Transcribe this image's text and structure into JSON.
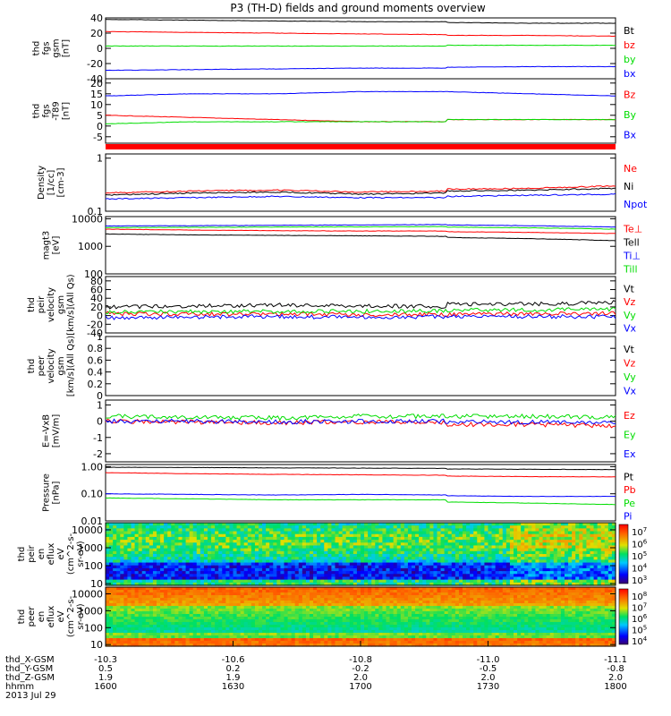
{
  "title": "P3 (TH-D) fields and ground moments overview",
  "colors": {
    "black": "#000000",
    "red": "#ff0000",
    "green": "#00dd00",
    "blue": "#0000ff"
  },
  "chart_data": [
    {
      "type": "line",
      "panel": "fgs_gsm",
      "ylabel": [
        "thd",
        "fgs",
        "gsm",
        "[nT]"
      ],
      "ylim": [
        -40,
        40
      ],
      "yticks": [
        40,
        20,
        0,
        -20,
        -40
      ],
      "series": [
        {
          "name": "Bt",
          "color": "black",
          "x": [
            1600,
            1620,
            1640,
            1660,
            1680,
            1700,
            1720,
            1740,
            1760,
            1780,
            1800
          ],
          "values": [
            38,
            37,
            36,
            35,
            35,
            34,
            34,
            33,
            33,
            32,
            33
          ]
        },
        {
          "name": "bz",
          "color": "red",
          "x": [
            1600,
            1620,
            1640,
            1660,
            1680,
            1700,
            1720,
            1740,
            1760,
            1780,
            1800
          ],
          "values": [
            22,
            21,
            20,
            19,
            18,
            18,
            17,
            17,
            16,
            15,
            16
          ]
        },
        {
          "name": "by",
          "color": "green",
          "x": [
            1600,
            1620,
            1640,
            1660,
            1680,
            1700,
            1720,
            1740,
            1760,
            1780,
            1800
          ],
          "values": [
            3,
            3,
            3,
            3,
            3,
            4,
            4,
            4,
            4,
            4,
            4
          ]
        },
        {
          "name": "bx",
          "color": "blue",
          "x": [
            1600,
            1620,
            1640,
            1660,
            1680,
            1700,
            1720,
            1740,
            1760,
            1780,
            1800
          ],
          "values": [
            -29,
            -28,
            -27,
            -26,
            -26,
            -25,
            -25,
            -24,
            -24,
            -23,
            -24
          ]
        }
      ]
    },
    {
      "type": "line",
      "panel": "fgs_t89",
      "ylabel": [
        "thd",
        "fgs",
        "-T89",
        "[nT]"
      ],
      "ylim": [
        -8,
        22
      ],
      "yticks": [
        20,
        15,
        10,
        5,
        0,
        -5
      ],
      "series": [
        {
          "name": "Bz",
          "color": "red",
          "x": [
            1600,
            1620,
            1640,
            1660,
            1680,
            1700,
            1720,
            1740,
            1760,
            1780,
            1800
          ],
          "values": [
            5,
            4,
            3,
            2,
            2,
            2,
            3,
            3,
            3,
            4,
            5
          ]
        },
        {
          "name": "By",
          "color": "green",
          "x": [
            1600,
            1620,
            1640,
            1660,
            1680,
            1700,
            1720,
            1740,
            1760,
            1780,
            1800
          ],
          "values": [
            1,
            2,
            2,
            2,
            2,
            3,
            3,
            3,
            3,
            4,
            5
          ]
        },
        {
          "name": "Bx",
          "color": "blue",
          "x": [
            1600,
            1620,
            1640,
            1660,
            1680,
            1700,
            1720,
            1740,
            1760,
            1780,
            1800
          ],
          "values": [
            14,
            15,
            15,
            16,
            16,
            17,
            16,
            15,
            14,
            12,
            11
          ]
        }
      ]
    },
    {
      "type": "line",
      "panel": "density",
      "ylabel": [
        "Density",
        "[1/cc]",
        "[cm-3]"
      ],
      "yscale": "log",
      "ylim": [
        0.1,
        1.2
      ],
      "yticks": [
        1.0,
        0.1
      ],
      "series": [
        {
          "name": "Ne",
          "color": "red",
          "x": [
            1600,
            1620,
            1640,
            1660,
            1680,
            1700,
            1720,
            1740,
            1760,
            1780,
            1800
          ],
          "values": [
            0.22,
            0.24,
            0.25,
            0.23,
            0.24,
            0.25,
            0.26,
            0.27,
            0.3,
            0.32,
            0.28
          ]
        },
        {
          "name": "Ni",
          "color": "black",
          "x": [
            1600,
            1620,
            1640,
            1660,
            1680,
            1700,
            1720,
            1740,
            1760,
            1780,
            1800
          ],
          "values": [
            0.2,
            0.22,
            0.23,
            0.21,
            0.22,
            0.23,
            0.24,
            0.25,
            0.27,
            0.29,
            0.25
          ]
        },
        {
          "name": "Npot",
          "color": "blue",
          "x": [
            1600,
            1620,
            1640,
            1660,
            1680,
            1700,
            1720,
            1740,
            1760,
            1780,
            1800
          ],
          "values": [
            0.17,
            0.18,
            0.19,
            0.18,
            0.18,
            0.19,
            0.19,
            0.2,
            0.21,
            0.2,
            0.16
          ]
        }
      ]
    },
    {
      "type": "line",
      "panel": "temperature",
      "ylabel": [
        "magt3",
        "[eV]"
      ],
      "yscale": "log",
      "ylim": [
        100,
        12000
      ],
      "yticks": [
        10000,
        1000,
        100
      ],
      "tick_labels": [
        "10000",
        "1000",
        "100"
      ],
      "series": [
        {
          "name": "Te⊥",
          "color": "red",
          "x": [
            1600,
            1620,
            1640,
            1660,
            1680,
            1700,
            1720,
            1740,
            1760,
            1780,
            1800
          ],
          "values": [
            4200,
            3900,
            3700,
            3600,
            3600,
            3500,
            3400,
            3200,
            2900,
            2500,
            2000
          ]
        },
        {
          "name": "Tell",
          "color": "black",
          "x": [
            1600,
            1620,
            1640,
            1660,
            1680,
            1700,
            1720,
            1740,
            1760,
            1780,
            1800
          ],
          "values": [
            2800,
            2600,
            2500,
            2400,
            2300,
            2200,
            2100,
            1900,
            1600,
            1100,
            700
          ]
        },
        {
          "name": "Ti⊥",
          "color": "blue",
          "x": [
            1600,
            1620,
            1640,
            1660,
            1680,
            1700,
            1720,
            1740,
            1760,
            1780,
            1800
          ],
          "values": [
            5500,
            5600,
            5800,
            6000,
            6200,
            6100,
            6000,
            5600,
            5000,
            4400,
            4000
          ]
        },
        {
          "name": "Till",
          "color": "green",
          "x": [
            1600,
            1620,
            1640,
            1660,
            1680,
            1700,
            1720,
            1740,
            1760,
            1780,
            1800
          ],
          "values": [
            4800,
            4900,
            5000,
            5100,
            5200,
            5100,
            5000,
            4700,
            4200,
            3700,
            3300
          ]
        }
      ]
    },
    {
      "type": "line",
      "panel": "peir_velocity",
      "ylabel": [
        "thd",
        "peir",
        "velocity",
        "gsm",
        "[km/s](All Qs)"
      ],
      "ylim": [
        -40,
        90
      ],
      "yticks": [
        80,
        60,
        40,
        20,
        0,
        -20,
        -40
      ],
      "series": [
        {
          "name": "Vt",
          "color": "black",
          "x": [
            1600,
            1620,
            1640,
            1660,
            1680,
            1700,
            1720,
            1740,
            1760,
            1780,
            1800
          ],
          "values": [
            20,
            22,
            24,
            22,
            21,
            24,
            26,
            27,
            30,
            45,
            80
          ]
        },
        {
          "name": "Vz",
          "color": "red",
          "x": [
            1600,
            1620,
            1640,
            1660,
            1680,
            1700,
            1720,
            1740,
            1760,
            1780,
            1800
          ],
          "values": [
            5,
            3,
            4,
            2,
            3,
            4,
            3,
            4,
            5,
            10,
            20
          ]
        },
        {
          "name": "Vy",
          "color": "green",
          "x": [
            1600,
            1620,
            1640,
            1660,
            1680,
            1700,
            1720,
            1740,
            1760,
            1780,
            1800
          ],
          "values": [
            8,
            9,
            10,
            10,
            11,
            12,
            12,
            13,
            15,
            25,
            45
          ]
        },
        {
          "name": "Vx",
          "color": "blue",
          "x": [
            1600,
            1620,
            1640,
            1660,
            1680,
            1700,
            1720,
            1740,
            1760,
            1780,
            1800
          ],
          "values": [
            -5,
            -3,
            -2,
            -4,
            -3,
            -2,
            -1,
            -2,
            -3,
            -5,
            -20
          ]
        }
      ]
    },
    {
      "type": "line",
      "panel": "peer_velocity",
      "ylabel": [
        "thd",
        "peer",
        "velocity",
        "gsm",
        "[km/s](All Qs)"
      ],
      "ylim": [
        0,
        1.0
      ],
      "yticks": [
        1.0,
        0.8,
        0.6,
        0.4,
        0.2,
        0.0
      ],
      "series": [
        {
          "name": "Vt",
          "color": "black",
          "x": [],
          "values": []
        },
        {
          "name": "Vz",
          "color": "red",
          "x": [],
          "values": []
        },
        {
          "name": "Vy",
          "color": "green",
          "x": [],
          "values": []
        },
        {
          "name": "Vx",
          "color": "blue",
          "x": [],
          "values": []
        }
      ]
    },
    {
      "type": "line",
      "panel": "efield",
      "ylabel": [
        "E=-VxB",
        "[mV/m]"
      ],
      "ylim": [
        -2.5,
        1.3
      ],
      "yticks": [
        1,
        0,
        -1,
        -2
      ],
      "series": [
        {
          "name": "Ez",
          "color": "red",
          "x": [
            1600,
            1620,
            1640,
            1660,
            1680,
            1700,
            1720,
            1740,
            1760,
            1780,
            1800
          ],
          "values": [
            0.0,
            -0.05,
            -0.1,
            -0.05,
            -0.1,
            -0.15,
            -0.2,
            -0.2,
            -0.3,
            -0.8,
            -1.5
          ]
        },
        {
          "name": "Ey",
          "color": "green",
          "x": [
            1600,
            1620,
            1640,
            1660,
            1680,
            1700,
            1720,
            1740,
            1760,
            1780,
            1800
          ],
          "values": [
            0.3,
            0.25,
            0.2,
            0.3,
            0.3,
            0.35,
            0.3,
            0.3,
            0.25,
            0.0,
            0.2
          ]
        },
        {
          "name": "Ex",
          "color": "blue",
          "x": [
            1600,
            1620,
            1640,
            1660,
            1680,
            1700,
            1720,
            1740,
            1760,
            1780,
            1800
          ],
          "values": [
            0.0,
            0.0,
            -0.05,
            0.0,
            0.0,
            0.0,
            -0.05,
            -0.05,
            -0.1,
            -0.6,
            -1.2
          ]
        }
      ]
    },
    {
      "type": "line",
      "panel": "pressure",
      "ylabel": [
        "Pressure",
        "[nPa]"
      ],
      "yscale": "log",
      "ylim": [
        0.01,
        1.2
      ],
      "yticks": [
        1.0,
        0.1,
        0.01
      ],
      "tick_labels": [
        "1.00",
        "0.10",
        "0.01"
      ],
      "series": [
        {
          "name": "Pt",
          "color": "black",
          "x": [
            1600,
            1620,
            1640,
            1660,
            1680,
            1700,
            1720,
            1740,
            1760,
            1780,
            1800
          ],
          "values": [
            0.95,
            0.93,
            0.9,
            0.88,
            0.86,
            0.84,
            0.82,
            0.8,
            0.78,
            0.76,
            0.8
          ]
        },
        {
          "name": "Pb",
          "color": "red",
          "x": [
            1600,
            1620,
            1640,
            1660,
            1680,
            1700,
            1720,
            1740,
            1760,
            1780,
            1800
          ],
          "values": [
            0.6,
            0.55,
            0.52,
            0.5,
            0.48,
            0.46,
            0.45,
            0.43,
            0.42,
            0.4,
            0.45
          ]
        },
        {
          "name": "Pe",
          "color": "green",
          "x": [
            1600,
            1620,
            1640,
            1660,
            1680,
            1700,
            1720,
            1740,
            1760,
            1780,
            1800
          ],
          "values": [
            0.07,
            0.065,
            0.06,
            0.06,
            0.06,
            0.055,
            0.05,
            0.045,
            0.04,
            0.03,
            0.02
          ]
        },
        {
          "name": "Pi",
          "color": "blue",
          "x": [
            1600,
            1620,
            1640,
            1660,
            1680,
            1700,
            1720,
            1740,
            1760,
            1780,
            1800
          ],
          "values": [
            0.1,
            0.095,
            0.09,
            0.095,
            0.09,
            0.085,
            0.085,
            0.08,
            0.08,
            0.075,
            0.07
          ]
        }
      ]
    },
    {
      "type": "heatmap",
      "panel": "peir_spectrogram",
      "ylabel": [
        "thd",
        "peir",
        "en",
        "eflux",
        "eV",
        "(cm^2-s-",
        "sr-eV)"
      ],
      "yscale": "log",
      "ylim": [
        8,
        25000
      ],
      "yticks": [
        10000,
        1000,
        100,
        10
      ],
      "colorbar_ticks": [
        "10^7",
        "10^6",
        "10^5",
        "10^4",
        "10^3"
      ]
    },
    {
      "type": "heatmap",
      "panel": "peer_spectrogram",
      "ylabel": [
        "thd",
        "peer",
        "en",
        "eflux",
        "eV",
        "(cm^2-s-",
        "sr-eV)"
      ],
      "yscale": "log",
      "ylim": [
        8,
        25000
      ],
      "yticks": [
        10000,
        1000,
        100,
        10
      ],
      "colorbar_ticks": [
        "10^8",
        "10^7",
        "10^6",
        "10^5",
        "10^4"
      ]
    }
  ],
  "x_axis": {
    "range": [
      1600,
      1800
    ],
    "ticks": [
      1600,
      1630,
      1700,
      1730,
      1800
    ],
    "rows": [
      {
        "label": "thd_X-GSM",
        "values": [
          "-10.3",
          "-10.6",
          "-10.8",
          "-11.0",
          "-11.1"
        ]
      },
      {
        "label": "thd_Y-GSM",
        "values": [
          "0.5",
          "0.2",
          "-0.2",
          "-0.5",
          "-0.8"
        ]
      },
      {
        "label": "thd_Z-GSM",
        "values": [
          "1.9",
          "1.9",
          "2.0",
          "2.0",
          "2.0"
        ]
      },
      {
        "label": "hhmm",
        "values": [
          "1600",
          "1630",
          "1700",
          "1730",
          "1800"
        ]
      }
    ],
    "date": "2013 Jul 29"
  }
}
